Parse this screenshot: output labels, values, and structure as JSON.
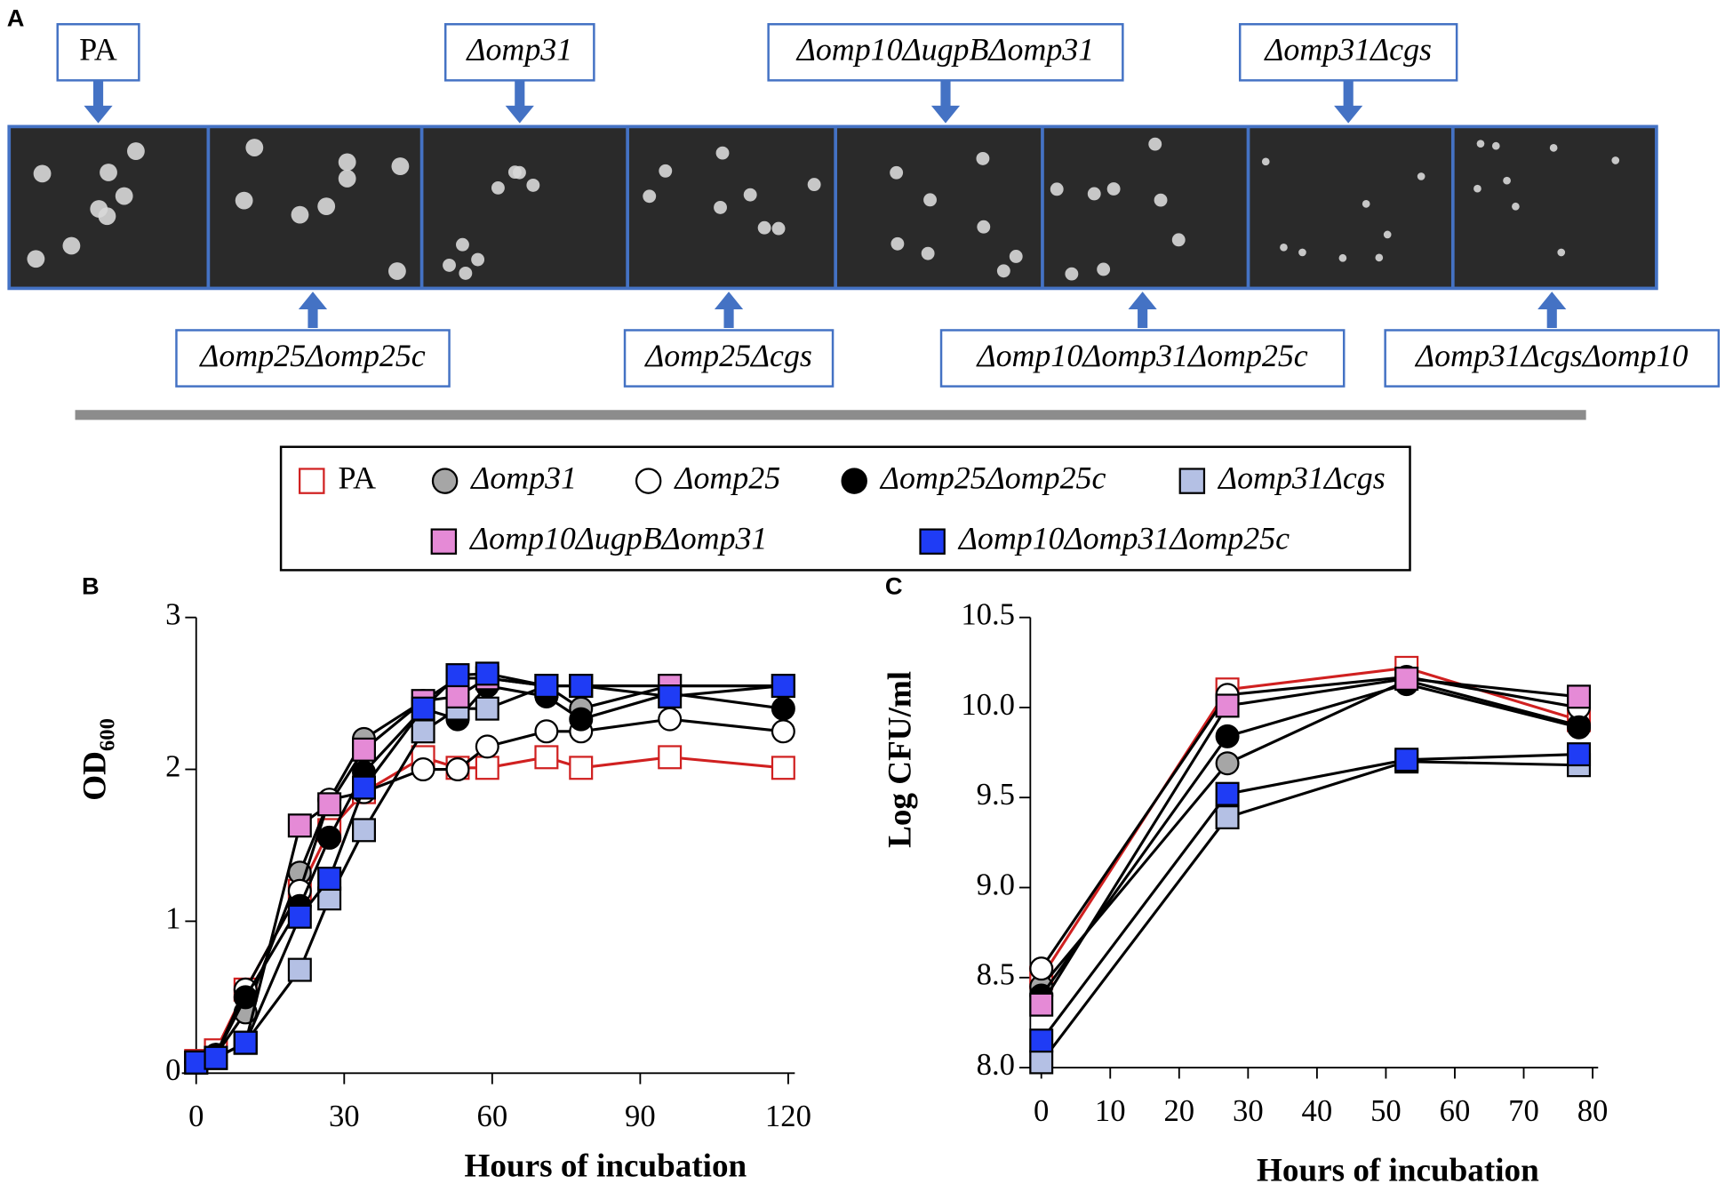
{
  "panel_labels": [
    "A",
    "B",
    "C"
  ],
  "colony_labels_top": [
    "PA",
    "Δomp31",
    "Δomp10ΔugpBΔomp31",
    "Δomp31Δcgs"
  ],
  "colony_labels_bottom": [
    "Δomp25Δomp25c",
    "Δomp25Δcgs",
    "Δomp10Δomp31Δomp25c",
    "Δomp31ΔcgsΔomp10"
  ],
  "chart_data": [
    {
      "type": "line",
      "xlabel": "Hours of incubation",
      "ylabel": "OD",
      "ylabel_sub": "600",
      "x": [
        0,
        4,
        10,
        21,
        27,
        34,
        46,
        53,
        59,
        71,
        78,
        96,
        119
      ],
      "xlim": [
        0,
        120
      ],
      "xticks": [
        0,
        30,
        60,
        90,
        120
      ],
      "ylim": [
        0,
        3
      ],
      "yticks": [
        0,
        1,
        2,
        3
      ],
      "series": [
        {
          "name": "PA",
          "marker": "square",
          "color": "#ffffff",
          "edgecolor": "#d02020",
          "linecolor": "#d02020",
          "values": [
            0.08,
            0.15,
            0.55,
            1.2,
            1.6,
            1.85,
            2.08,
            2.01,
            2.01,
            2.08,
            2.01,
            2.08,
            2.01
          ]
        },
        {
          "name": "Δomp31",
          "marker": "circle",
          "color": "#a6a6a6",
          "edgecolor": "#000000",
          "linecolor": "#000000",
          "values": [
            0.07,
            0.12,
            0.4,
            1.32,
            1.8,
            2.2,
            2.45,
            2.6,
            2.6,
            2.55,
            2.4,
            2.55,
            2.55
          ]
        },
        {
          "name": "Δomp25",
          "marker": "circle",
          "color": "#ffffff",
          "edgecolor": "#000000",
          "linecolor": "#000000",
          "values": [
            0.07,
            0.12,
            0.55,
            1.2,
            1.8,
            1.85,
            2.0,
            2.0,
            2.15,
            2.25,
            2.25,
            2.33,
            2.25
          ]
        },
        {
          "name": "Δomp25Δomp25c",
          "marker": "circle",
          "color": "#000000",
          "edgecolor": "#000000",
          "linecolor": "#000000",
          "values": [
            0.07,
            0.12,
            0.5,
            1.1,
            1.55,
            1.98,
            2.4,
            2.33,
            2.55,
            2.48,
            2.33,
            2.5,
            2.4
          ]
        },
        {
          "name": "Δomp31Δcgs",
          "marker": "square",
          "color": "#b4c0e4",
          "edgecolor": "#000000",
          "linecolor": "#000000",
          "values": [
            0.07,
            0.1,
            0.2,
            0.68,
            1.15,
            1.6,
            2.25,
            2.4,
            2.4,
            2.55,
            2.55,
            2.55,
            2.55
          ]
        },
        {
          "name": "Δomp10ΔugpBΔomp31",
          "marker": "square",
          "color": "#e58ad6",
          "edgecolor": "#000000",
          "linecolor": "#000000",
          "values": [
            0.07,
            0.1,
            0.2,
            1.63,
            1.77,
            2.13,
            2.45,
            2.48,
            2.6,
            2.55,
            2.55,
            2.55,
            2.55
          ]
        },
        {
          "name": "Δomp10Δomp31Δomp25c",
          "marker": "square",
          "color": "#1f3cf5",
          "edgecolor": "#000000",
          "linecolor": "#000000",
          "values": [
            0.07,
            0.1,
            0.2,
            1.03,
            1.28,
            1.88,
            2.4,
            2.62,
            2.63,
            2.55,
            2.55,
            2.48,
            2.55
          ]
        }
      ]
    },
    {
      "type": "line",
      "xlabel": "Hours of incubation",
      "ylabel": "Log CFU/ml",
      "x": [
        0,
        27,
        53,
        78
      ],
      "xlim": [
        0,
        80
      ],
      "xticks": [
        0,
        10,
        20,
        30,
        40,
        50,
        60,
        70,
        80
      ],
      "ylim": [
        8,
        10.5
      ],
      "yticks": [
        {
          "value": 8,
          "label": "8.0"
        },
        8.5,
        {
          "value": 9,
          "label": "9.0"
        },
        9.5,
        {
          "value": 10,
          "label": "10.0"
        },
        10.5
      ],
      "series": [
        {
          "marker": "square",
          "color": "#ffffff",
          "edgecolor": "#d02020",
          "linecolor": "#d02020",
          "values": [
            8.5,
            10.1,
            10.22,
            9.93
          ]
        },
        {
          "marker": "circle",
          "color": "#a6a6a6",
          "edgecolor": "#000000",
          "linecolor": "#000000",
          "values": [
            8.45,
            9.69,
            10.15,
            9.9
          ]
        },
        {
          "marker": "circle",
          "color": "#ffffff",
          "edgecolor": "#000000",
          "linecolor": "#000000",
          "values": [
            8.55,
            10.07,
            10.17,
            10.0
          ]
        },
        {
          "marker": "circle",
          "color": "#000000",
          "edgecolor": "#000000",
          "linecolor": "#000000",
          "values": [
            8.4,
            9.84,
            10.13,
            9.89
          ]
        },
        {
          "marker": "square",
          "color": "#b4c0e4",
          "edgecolor": "#000000",
          "linecolor": "#000000",
          "values": [
            8.03,
            9.39,
            9.7,
            9.68
          ]
        },
        {
          "marker": "square",
          "color": "#e58ad6",
          "edgecolor": "#000000",
          "linecolor": "#000000",
          "values": [
            8.35,
            10.01,
            10.16,
            10.06
          ]
        },
        {
          "marker": "square",
          "color": "#1f3cf5",
          "edgecolor": "#000000",
          "linecolor": "#000000",
          "values": [
            8.15,
            9.52,
            9.71,
            9.74
          ]
        }
      ]
    }
  ]
}
